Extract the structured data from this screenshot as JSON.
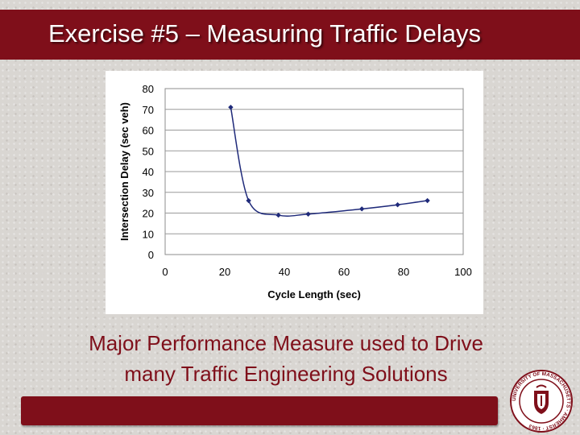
{
  "slide": {
    "title": "Exercise #5 – Measuring Traffic Delays",
    "caption_line1": "Major Performance Measure used to Drive",
    "caption_line2": "many Traffic Engineering Solutions"
  },
  "seal": {
    "ring_text": "UNIVERSITY OF MASSACHUSETTS · AMHERST · 1863",
    "icon": "university-seal-icon"
  },
  "colors": {
    "maroon": "#7f0f1a",
    "series": "#1f2a7a",
    "title_text": "#ffffff"
  },
  "chart_data": {
    "type": "line",
    "title": "",
    "xlabel": "Cycle Length (sec)",
    "ylabel": "Intersection Delay (sec veh)",
    "xlim": [
      0,
      100
    ],
    "ylim": [
      0,
      80
    ],
    "xticks": [
      0,
      20,
      40,
      60,
      80,
      100
    ],
    "yticks": [
      0,
      10,
      20,
      30,
      40,
      50,
      60,
      70,
      80
    ],
    "grid": "horizontal",
    "legend": "none",
    "smoothed": true,
    "series": [
      {
        "x": [
          22,
          28,
          38,
          48,
          66,
          78,
          88
        ],
        "y": [
          71,
          26,
          19,
          19.5,
          22,
          24,
          26
        ]
      }
    ]
  }
}
